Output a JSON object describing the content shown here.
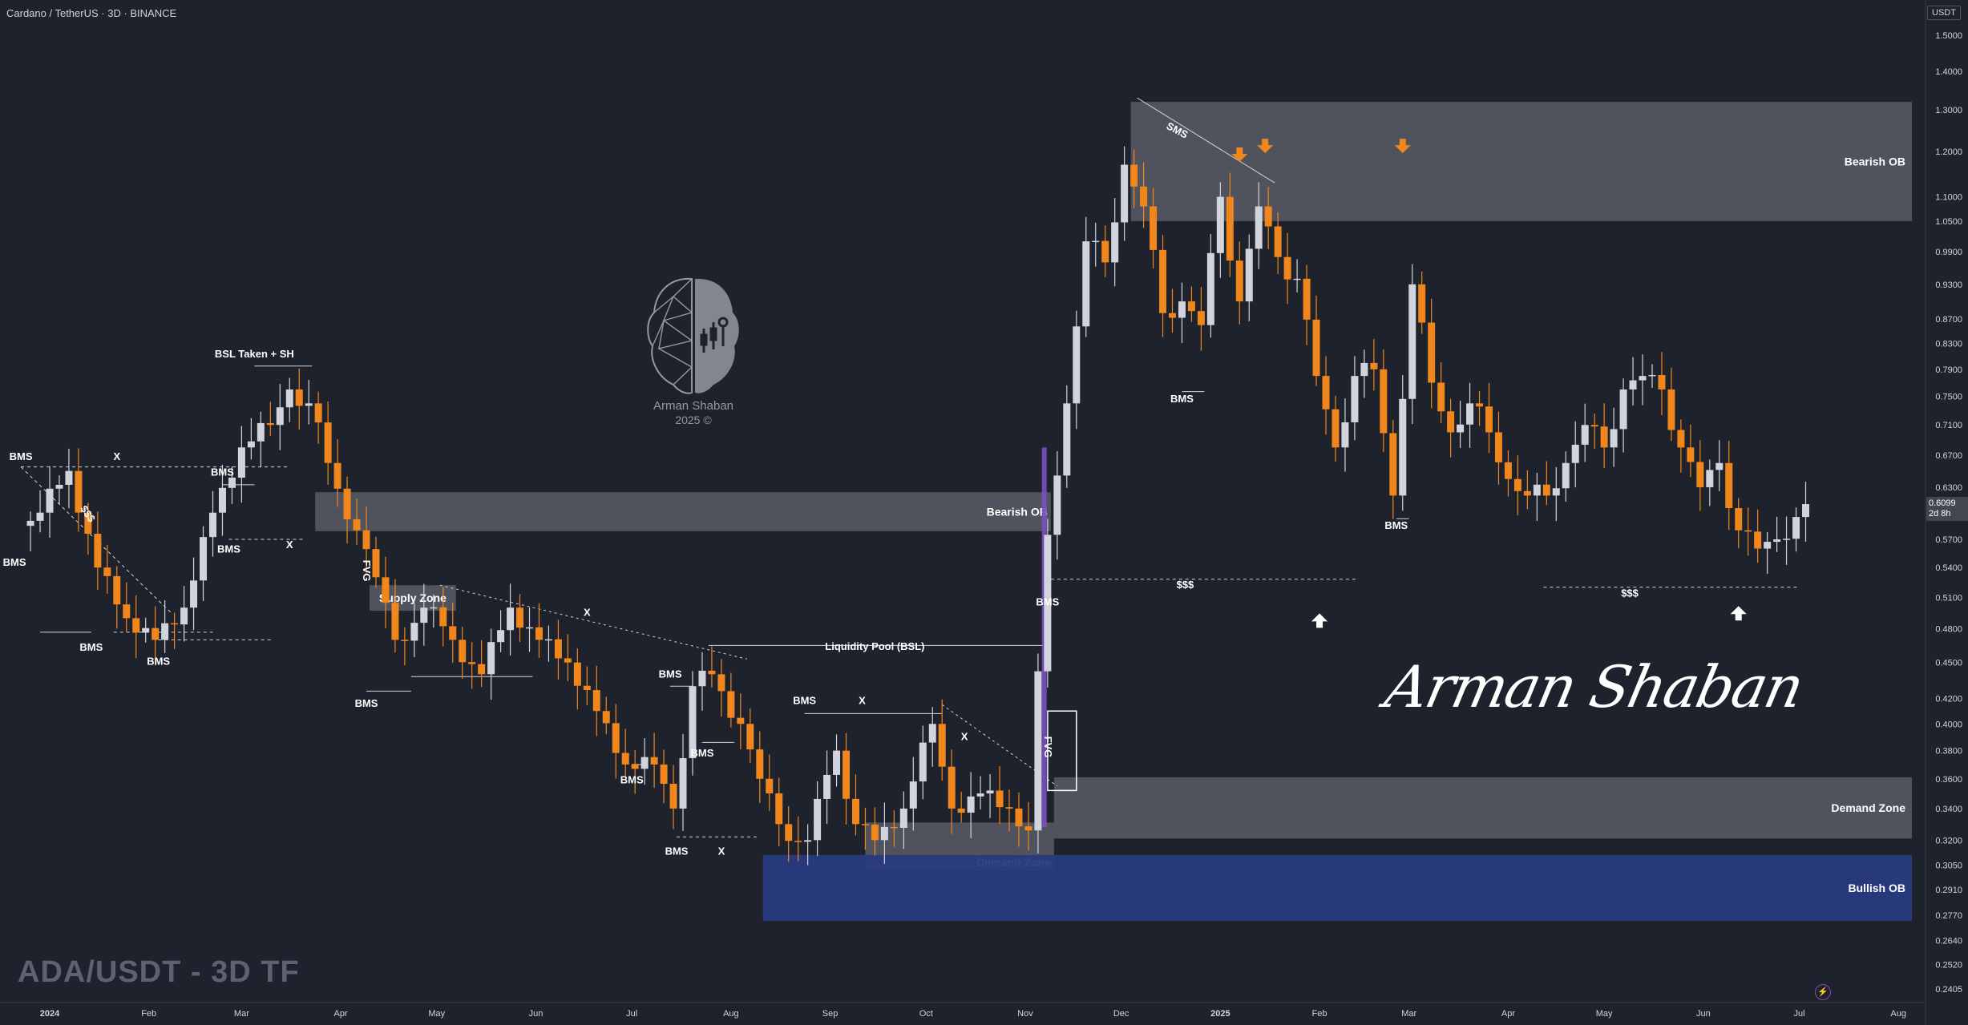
{
  "header": {
    "title": "Cardano / TetherUS · 3D · BINANCE",
    "unit": "USDT"
  },
  "watermark": {
    "pair_tf": "ADA/USDT - 3D TF",
    "logo_name": "Arman Shaban",
    "logo_year": "2025 ©",
    "signature": "Arman Shaban"
  },
  "price_tag": {
    "price": "0.6099",
    "countdown": "2d 8h"
  },
  "colors": {
    "background": "#1e222d",
    "bull_candle": "#d1d4dc",
    "bear_candle": "#f0861c",
    "zone_gray": "#9598a1",
    "bullish_ob": "#283b80",
    "arrow_orange": "#f0861c",
    "arrow_white": "#ffffff",
    "impulse_purple": "#7b4fc0"
  },
  "chart_data": {
    "type": "candlestick",
    "symbol": "Cardano / TetherUS",
    "timeframe": "3D",
    "exchange": "BINANCE",
    "scale": "log",
    "ylim": [
      0.2405,
      1.5
    ],
    "price_ticks": [
      "1.5000",
      "1.4000",
      "1.3000",
      "1.2000",
      "1.1000",
      "1.0500",
      "0.9900",
      "0.9300",
      "0.8700",
      "0.8300",
      "0.7900",
      "0.7500",
      "0.7100",
      "0.6700",
      "0.6300",
      "0.6099",
      "0.5700",
      "0.5400",
      "0.5100",
      "0.4800",
      "0.4500",
      "0.4200",
      "0.4000",
      "0.3800",
      "0.3600",
      "0.3400",
      "0.3200",
      "0.3050",
      "0.2910",
      "0.2770",
      "0.2640",
      "0.2520",
      "0.2405"
    ],
    "time_axis": [
      {
        "label": "2024",
        "day": 0
      },
      {
        "label": "Feb",
        "day": 31
      },
      {
        "label": "Mar",
        "day": 60
      },
      {
        "label": "Apr",
        "day": 91
      },
      {
        "label": "May",
        "day": 121
      },
      {
        "label": "Jun",
        "day": 152
      },
      {
        "label": "Jul",
        "day": 182
      },
      {
        "label": "Aug",
        "day": 213
      },
      {
        "label": "Sep",
        "day": 244
      },
      {
        "label": "Oct",
        "day": 274
      },
      {
        "label": "Nov",
        "day": 305
      },
      {
        "label": "Dec",
        "day": 335
      },
      {
        "label": "2025",
        "day": 366
      },
      {
        "label": "Feb",
        "day": 397
      },
      {
        "label": "Mar",
        "day": 425
      },
      {
        "label": "Apr",
        "day": 456
      },
      {
        "label": "May",
        "day": 486
      },
      {
        "label": "Jun",
        "day": 517
      },
      {
        "label": "Jul",
        "day": 547
      },
      {
        "label": "Aug",
        "day": 578
      }
    ],
    "key_prices": [
      {
        "day": -9,
        "price": 0.585
      },
      {
        "day": -3,
        "price": 0.6
      },
      {
        "day": 6,
        "price": 0.65
      },
      {
        "day": 15,
        "price": 0.54
      },
      {
        "day": 24,
        "price": 0.49
      },
      {
        "day": 33,
        "price": 0.47
      },
      {
        "day": 42,
        "price": 0.5
      },
      {
        "day": 51,
        "price": 0.6
      },
      {
        "day": 60,
        "price": 0.68
      },
      {
        "day": 69,
        "price": 0.71
      },
      {
        "day": 75,
        "price": 0.76
      },
      {
        "day": 81,
        "price": 0.74
      },
      {
        "day": 87,
        "price": 0.66
      },
      {
        "day": 96,
        "price": 0.58
      },
      {
        "day": 102,
        "price": 0.53
      },
      {
        "day": 108,
        "price": 0.47
      },
      {
        "day": 117,
        "price": 0.5
      },
      {
        "day": 126,
        "price": 0.47
      },
      {
        "day": 135,
        "price": 0.44
      },
      {
        "day": 144,
        "price": 0.5
      },
      {
        "day": 153,
        "price": 0.47
      },
      {
        "day": 162,
        "price": 0.45
      },
      {
        "day": 171,
        "price": 0.41
      },
      {
        "day": 180,
        "price": 0.37
      },
      {
        "day": 189,
        "price": 0.37
      },
      {
        "day": 195,
        "price": 0.34
      },
      {
        "day": 201,
        "price": 0.43
      },
      {
        "day": 207,
        "price": 0.44
      },
      {
        "day": 216,
        "price": 0.4
      },
      {
        "day": 222,
        "price": 0.36
      },
      {
        "day": 228,
        "price": 0.33
      },
      {
        "day": 237,
        "price": 0.32
      },
      {
        "day": 246,
        "price": 0.38
      },
      {
        "day": 252,
        "price": 0.33
      },
      {
        "day": 258,
        "price": 0.32
      },
      {
        "day": 267,
        "price": 0.34
      },
      {
        "day": 276,
        "price": 0.4
      },
      {
        "day": 282,
        "price": 0.34
      },
      {
        "day": 291,
        "price": 0.35
      },
      {
        "day": 300,
        "price": 0.34
      },
      {
        "day": 306,
        "price": 0.326
      },
      {
        "day": 312,
        "price": 0.575
      },
      {
        "day": 318,
        "price": 0.74
      },
      {
        "day": 324,
        "price": 1.01
      },
      {
        "day": 330,
        "price": 0.97
      },
      {
        "day": 336,
        "price": 1.17
      },
      {
        "day": 342,
        "price": 1.08
      },
      {
        "day": 348,
        "price": 0.88
      },
      {
        "day": 354,
        "price": 0.9
      },
      {
        "day": 360,
        "price": 0.86
      },
      {
        "day": 366,
        "price": 1.1
      },
      {
        "day": 372,
        "price": 0.9
      },
      {
        "day": 378,
        "price": 1.08
      },
      {
        "day": 384,
        "price": 0.98
      },
      {
        "day": 390,
        "price": 0.94
      },
      {
        "day": 396,
        "price": 0.78
      },
      {
        "day": 402,
        "price": 0.68
      },
      {
        "day": 408,
        "price": 0.78
      },
      {
        "day": 414,
        "price": 0.79
      },
      {
        "day": 420,
        "price": 0.62
      },
      {
        "day": 426,
        "price": 0.93
      },
      {
        "day": 432,
        "price": 0.77
      },
      {
        "day": 438,
        "price": 0.7
      },
      {
        "day": 444,
        "price": 0.74
      },
      {
        "day": 450,
        "price": 0.7
      },
      {
        "day": 456,
        "price": 0.64
      },
      {
        "day": 462,
        "price": 0.62
      },
      {
        "day": 468,
        "price": 0.62
      },
      {
        "day": 474,
        "price": 0.66
      },
      {
        "day": 480,
        "price": 0.71
      },
      {
        "day": 486,
        "price": 0.68
      },
      {
        "day": 492,
        "price": 0.76
      },
      {
        "day": 498,
        "price": 0.78
      },
      {
        "day": 504,
        "price": 0.76
      },
      {
        "day": 510,
        "price": 0.68
      },
      {
        "day": 516,
        "price": 0.63
      },
      {
        "day": 522,
        "price": 0.66
      },
      {
        "day": 528,
        "price": 0.58
      },
      {
        "day": 534,
        "price": 0.56
      },
      {
        "day": 540,
        "price": 0.57
      },
      {
        "day": 546,
        "price": 0.595
      },
      {
        "day": 549,
        "price": 0.6099
      }
    ],
    "zones": [
      {
        "label": "Bearish OB",
        "day_from": 338,
        "day_to": 630,
        "price_high": 1.32,
        "price_low": 1.05,
        "color": "gray"
      },
      {
        "label": "Bearish OB",
        "day_from": 83,
        "day_to": 313,
        "price_high": 0.624,
        "price_low": 0.579,
        "color": "gray"
      },
      {
        "label": "Supply Zone",
        "day_from": 100,
        "day_to": 127,
        "price_high": 0.522,
        "price_low": 0.497,
        "color": "gray"
      },
      {
        "label": "Demand Zone",
        "day_from": 314,
        "day_to": 630,
        "price_high": 0.361,
        "price_low": 0.321,
        "color": "gray"
      },
      {
        "label": "Demand Zone",
        "day_from": 255,
        "day_to": 314,
        "price_high": 0.331,
        "price_low": 0.302,
        "color": "gray"
      },
      {
        "label": "Bullish OB",
        "day_from": 223,
        "day_to": 630,
        "price_high": 0.311,
        "price_low": 0.274,
        "color": "blue"
      }
    ],
    "annotations": [
      {
        "text": "BMS",
        "day": -9,
        "price": 0.668
      },
      {
        "text": "X",
        "day": 21,
        "price": 0.668
      },
      {
        "text": "$$$",
        "day": 11,
        "price": 0.6
      },
      {
        "text": "BMS",
        "day": -11,
        "price": 0.545
      },
      {
        "text": "BMS",
        "day": 13,
        "price": 0.463
      },
      {
        "text": "BMS",
        "day": 34,
        "price": 0.451
      },
      {
        "text": "BSL Taken + SH",
        "day": 64,
        "price": 0.813
      },
      {
        "text": "BMS",
        "day": 54,
        "price": 0.648
      },
      {
        "text": "BMS",
        "day": 56,
        "price": 0.559
      },
      {
        "text": "X",
        "day": 75,
        "price": 0.564
      },
      {
        "text": "FVG",
        "day": 98,
        "price": 0.54
      },
      {
        "text": "BMS",
        "day": 99,
        "price": 0.416
      },
      {
        "text": "Liquidity Pool (BSL)",
        "day": 258,
        "price": 0.464
      },
      {
        "text": "X",
        "day": 168,
        "price": 0.495
      },
      {
        "text": "BMS",
        "day": 182,
        "price": 0.359
      },
      {
        "text": "BMS",
        "day": 194,
        "price": 0.44
      },
      {
        "text": "BMS",
        "day": 204,
        "price": 0.378
      },
      {
        "text": "BMS",
        "day": 196,
        "price": 0.313
      },
      {
        "text": "X",
        "day": 210,
        "price": 0.313
      },
      {
        "text": "BMS",
        "day": 236,
        "price": 0.418
      },
      {
        "text": "X",
        "day": 254,
        "price": 0.418
      },
      {
        "text": "X",
        "day": 286,
        "price": 0.39
      },
      {
        "text": "FVG",
        "day": 311,
        "price": 0.385
      },
      {
        "text": "BMS",
        "day": 312,
        "price": 0.505
      },
      {
        "text": "SMS",
        "day": 352,
        "price": 1.25
      },
      {
        "text": "BMS",
        "day": 354,
        "price": 0.746
      },
      {
        "text": "$$$",
        "day": 355,
        "price": 0.522
      },
      {
        "text": "BMS",
        "day": 421,
        "price": 0.585
      },
      {
        "text": "$$$",
        "day": 494,
        "price": 0.514
      }
    ],
    "arrows": [
      {
        "direction": "down",
        "day": 372,
        "price": 1.18,
        "color": "orange"
      },
      {
        "direction": "down",
        "day": 380,
        "price": 1.2,
        "color": "orange"
      },
      {
        "direction": "down",
        "day": 423,
        "price": 1.2,
        "color": "orange"
      },
      {
        "direction": "up",
        "day": 397,
        "price": 0.493,
        "color": "white"
      },
      {
        "direction": "up",
        "day": 528,
        "price": 0.5,
        "color": "white"
      }
    ],
    "grid": false,
    "legend": "none"
  }
}
